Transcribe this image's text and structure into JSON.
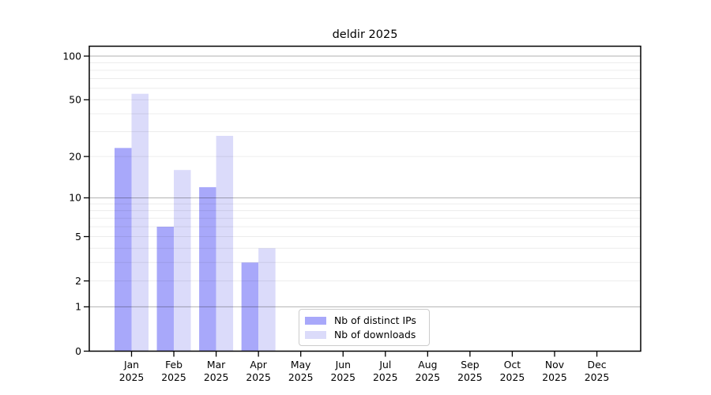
{
  "figure": {
    "title": "deldir 2025",
    "background": "#ffffff"
  },
  "legend": {
    "position": "bottom-center-inside",
    "items": [
      {
        "label": "Nb of distinct IPs",
        "color": "#a8a8fa"
      },
      {
        "label": "Nb of downloads",
        "color": "#dbdbfa"
      }
    ]
  },
  "chart_data": {
    "type": "bar",
    "title": "deldir 2025",
    "categories": [
      "Jan",
      "Feb",
      "Mar",
      "Apr",
      "May",
      "Jun",
      "Jul",
      "Aug",
      "Sep",
      "Oct",
      "Nov",
      "Dec"
    ],
    "category_sublabel": "2025",
    "series": [
      {
        "name": "Nb of distinct IPs",
        "color": "#a8a8fa",
        "values": [
          23,
          6,
          12,
          3,
          0,
          0,
          0,
          0,
          0,
          0,
          0,
          0
        ]
      },
      {
        "name": "Nb of downloads",
        "color": "#dbdbfa",
        "values": [
          55,
          16,
          28,
          4,
          0,
          0,
          0,
          0,
          0,
          0,
          0,
          0
        ]
      }
    ],
    "xlabel": "",
    "ylabel": "",
    "yscale": "log1p",
    "ylim": [
      0,
      119
    ],
    "yticks": [
      100,
      50,
      20,
      10,
      5,
      2,
      1,
      0
    ],
    "grid": {
      "major_lines": [
        1,
        10,
        100
      ],
      "minor_lines": [
        2,
        3,
        4,
        5,
        6,
        7,
        8,
        9,
        20,
        30,
        40,
        50,
        60,
        70,
        80,
        90
      ],
      "major_color": "rgba(0,0,0,0.30)",
      "minor_color": "rgba(0,0,0,0.075)"
    },
    "axis_color": "#000000",
    "tick_label_color": "#000000"
  }
}
